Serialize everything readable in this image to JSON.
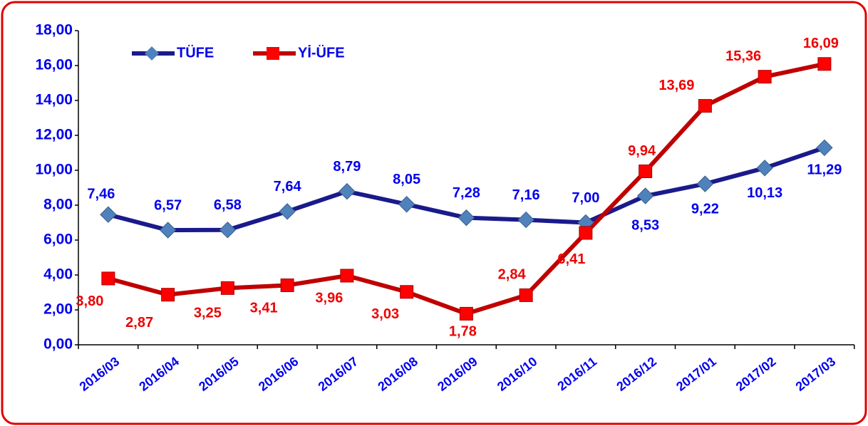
{
  "chart_data": {
    "type": "line",
    "categories": [
      "2016/03",
      "2016/04",
      "2016/05",
      "2016/06",
      "2016/07",
      "2016/08",
      "2016/09",
      "2016/10",
      "2016/11",
      "2016/12",
      "2017/01",
      "2017/02",
      "2017/03"
    ],
    "series": [
      {
        "name": "TÜFE",
        "color": "#1a1a8c",
        "marker_color": "#4f81bd",
        "marker": "diamond",
        "values": [
          7.46,
          6.57,
          6.58,
          7.64,
          8.79,
          8.05,
          7.28,
          7.16,
          7.0,
          8.53,
          9.22,
          10.13,
          11.29
        ],
        "value_labels": [
          "7,46",
          "6,57",
          "6,58",
          "7,64",
          "8,79",
          "8,05",
          "7,28",
          "7,16",
          "7,00",
          "8,53",
          "9,22",
          "10,13",
          "11,29"
        ]
      },
      {
        "name": "Yİ-ÜFE",
        "color": "#c00000",
        "marker_color": "#ff0000",
        "marker": "square",
        "values": [
          3.8,
          2.87,
          3.25,
          3.41,
          3.96,
          3.03,
          1.78,
          2.84,
          6.41,
          9.94,
          13.69,
          15.36,
          16.09
        ],
        "value_labels": [
          "3,80",
          "2,87",
          "3,25",
          "3,41",
          "3,96",
          "3,03",
          "1,78",
          "2,84",
          "6,41",
          "9,94",
          "13,69",
          "15,36",
          "16,09"
        ]
      }
    ],
    "ylim": [
      0,
      18
    ],
    "yticks": [
      {
        "value": 0,
        "label": "0,00"
      },
      {
        "value": 2,
        "label": "2,00"
      },
      {
        "value": 4,
        "label": "4,00"
      },
      {
        "value": 6,
        "label": "6,00"
      },
      {
        "value": 8,
        "label": "8,00"
      },
      {
        "value": 10,
        "label": "10,00"
      },
      {
        "value": 12,
        "label": "12,00"
      },
      {
        "value": 14,
        "label": "14,00"
      },
      {
        "value": 16,
        "label": "16,00"
      },
      {
        "value": 18,
        "label": "18,00"
      }
    ],
    "grid": false,
    "legend": "top-left"
  }
}
